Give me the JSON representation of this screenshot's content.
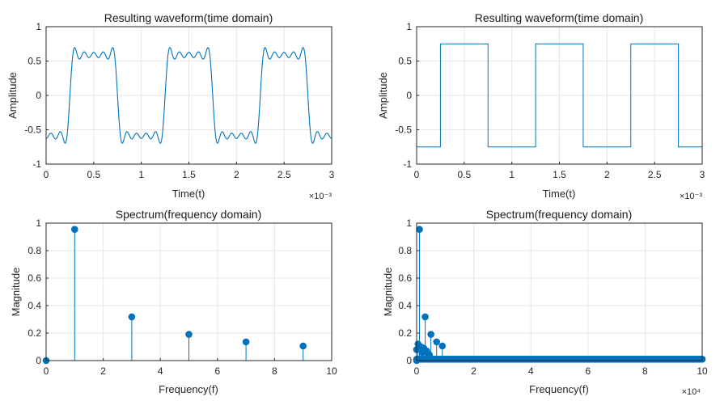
{
  "colors": {
    "series": "#0072BD",
    "grid": "#E6E6E6",
    "axis": "#262626"
  },
  "chart_data": [
    {
      "type": "line",
      "title": "Resulting waveform(time domain)",
      "xlabel": "Time(t)",
      "ylabel": "Amplitude",
      "xlim": [
        0,
        0.003
      ],
      "ylim": [
        -1,
        1
      ],
      "x_ticks": [
        "0",
        "0.5",
        "1",
        "1.5",
        "2",
        "2.5",
        "3"
      ],
      "y_ticks": [
        "-1",
        "-0.5",
        "0",
        "0.5",
        "1"
      ],
      "x_exponent": "×10⁻³",
      "grid": true,
      "series": [
        {
          "signal": "sum of odd harmonics (1,3,5,7,9) of square wave, f0 = 1000 Hz, phase shifted",
          "harmonic_amplitudes": [
            0.955,
            0.318,
            0.191,
            0.136,
            0.106
          ],
          "fundamental_hz": 1000,
          "period_s": 0.001,
          "high_interval": [
            0.00025,
            0.00075
          ]
        }
      ]
    },
    {
      "type": "line",
      "title": "Resulting waveform(time domain)",
      "xlabel": "Time(t)",
      "ylabel": "Amplitude",
      "xlim": [
        0,
        0.003
      ],
      "ylim": [
        -1,
        1
      ],
      "x_ticks": [
        "0",
        "0.5",
        "1",
        "1.5",
        "2",
        "2.5",
        "3"
      ],
      "y_ticks": [
        "-1",
        "-0.5",
        "0",
        "0.5",
        "1"
      ],
      "x_exponent": "×10⁻³",
      "grid": true,
      "series": [
        {
          "signal": "square wave",
          "high": 0.75,
          "low": -0.75,
          "transitions": [
            0.00025,
            0.00075,
            0.00125,
            0.00175,
            0.00225,
            0.00275
          ]
        }
      ]
    },
    {
      "type": "stem",
      "title": "Spectrum(frequency domain)",
      "xlabel": "Frequency(f)",
      "ylabel": "Magnitude",
      "xlim": [
        0,
        10
      ],
      "ylim": [
        0,
        1
      ],
      "x_ticks": [
        "0",
        "2",
        "4",
        "6",
        "8",
        "10"
      ],
      "y_ticks": [
        "0",
        "0.2",
        "0.4",
        "0.6",
        "0.8",
        "1"
      ],
      "grid": true,
      "x": [
        0,
        1,
        3,
        5,
        7,
        9
      ],
      "values": [
        0,
        0.955,
        0.318,
        0.191,
        0.136,
        0.106
      ]
    },
    {
      "type": "stem",
      "title": "Spectrum(frequency domain)",
      "xlabel": "Frequency(f)",
      "ylabel": "Magnitude",
      "xlim": [
        0,
        100000
      ],
      "ylim": [
        0,
        1
      ],
      "x_ticks": [
        "0",
        "2",
        "4",
        "6",
        "8",
        "10"
      ],
      "y_ticks": [
        "0",
        "0.2",
        "0.4",
        "0.6",
        "0.8",
        "1"
      ],
      "x_exponent": "×10⁴",
      "grid": true,
      "x": [
        0,
        1000,
        3000,
        5000,
        7000,
        9000
      ],
      "values": [
        0,
        0.955,
        0.318,
        0.191,
        0.136,
        0.106
      ],
      "near_zero_cluster": {
        "x_range": [
          0,
          100000
        ],
        "step": 500,
        "value": 0.01,
        "dense_low_band": [
          0,
          500,
          1500,
          2000,
          2500,
          3500,
          4000,
          4500
        ],
        "dense_low_values": [
          0.08,
          0.12,
          0.1,
          0.06,
          0.09,
          0.07,
          0.05,
          0.04
        ]
      }
    }
  ]
}
